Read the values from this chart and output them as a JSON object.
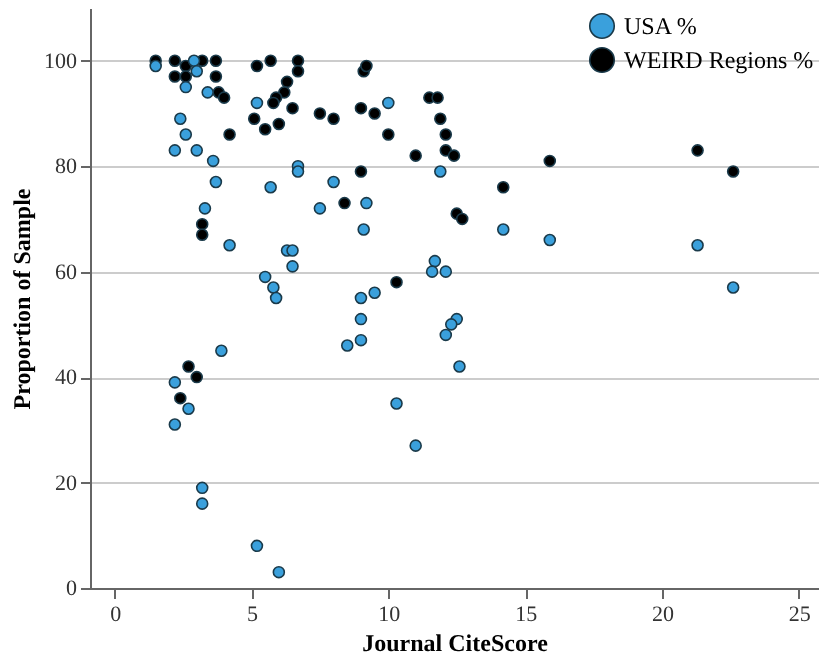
{
  "chart_data": {
    "type": "scatter",
    "xlabel": "Journal CiteScore",
    "ylabel": "Proportion of Sample",
    "xlim": [
      -0.9,
      25.7
    ],
    "xticks": [
      0,
      5,
      10,
      15,
      20,
      25
    ],
    "ylim": [
      0,
      110
    ],
    "yticks": [
      0,
      20,
      40,
      60,
      80,
      100
    ],
    "grid": "y",
    "legend": "top right",
    "marker": "circle",
    "series": [
      {
        "name": "USA %",
        "color": "#3aa0dc",
        "x": [
          1.5,
          2.9,
          3.0,
          2.6,
          3.4,
          5.2,
          2.4,
          2.6,
          2.2,
          3.0,
          3.6,
          3.7,
          6.7,
          6.7,
          5.7,
          3.3,
          8.0,
          7.5,
          9.1,
          4.2,
          6.3,
          6.5,
          6.5,
          5.5,
          5.8,
          5.9,
          9.0,
          9.0,
          8.5,
          9.0,
          3.9,
          2.2,
          2.7,
          2.2,
          3.2,
          3.2,
          5.2,
          6.0,
          10.0,
          11.9,
          9.2,
          14.2,
          15.9,
          11.7,
          11.6,
          12.1,
          9.5,
          12.5,
          12.3,
          12.1,
          12.6,
          10.3,
          11.0,
          21.3,
          22.6
        ],
        "values": [
          99,
          100,
          98,
          95,
          94,
          92,
          89,
          86,
          83,
          83,
          81,
          77,
          80,
          79,
          76,
          72,
          77,
          72,
          68,
          65,
          64,
          64,
          61,
          59,
          57,
          55,
          55,
          51,
          46,
          47,
          45,
          39,
          34,
          31,
          19,
          16,
          8,
          3,
          92,
          79,
          73,
          68,
          66,
          62,
          60,
          60,
          56,
          51,
          50,
          48,
          42,
          35,
          27,
          65,
          57
        ]
      },
      {
        "name": "WEIRD Regions %",
        "color": "#000000",
        "x": [
          1.5,
          2.2,
          2.6,
          3.2,
          3.7,
          2.2,
          2.6,
          3.7,
          3.8,
          4.0,
          4.2,
          5.2,
          5.7,
          6.7,
          6.7,
          6.3,
          6.2,
          5.9,
          5.8,
          6.5,
          5.1,
          6.0,
          5.5,
          7.5,
          8.0,
          9.0,
          9.1,
          9.0,
          8.4,
          3.2,
          3.2,
          2.7,
          3.0,
          2.4,
          9.2,
          9.5,
          10.0,
          11.0,
          11.5,
          11.8,
          11.9,
          12.1,
          12.1,
          12.4,
          14.2,
          15.9,
          12.5,
          12.7,
          10.3,
          21.3,
          22.6
        ],
        "values": [
          100,
          100,
          99,
          100,
          100,
          97,
          97,
          97,
          94,
          93,
          86,
          99,
          100,
          100,
          98,
          96,
          94,
          93,
          92,
          91,
          89,
          88,
          87,
          90,
          89,
          91,
          98,
          79,
          73,
          69,
          67,
          42,
          40,
          36,
          99,
          90,
          86,
          82,
          93,
          93,
          89,
          86,
          83,
          82,
          76,
          81,
          71,
          70,
          58,
          83,
          79
        ]
      }
    ]
  }
}
